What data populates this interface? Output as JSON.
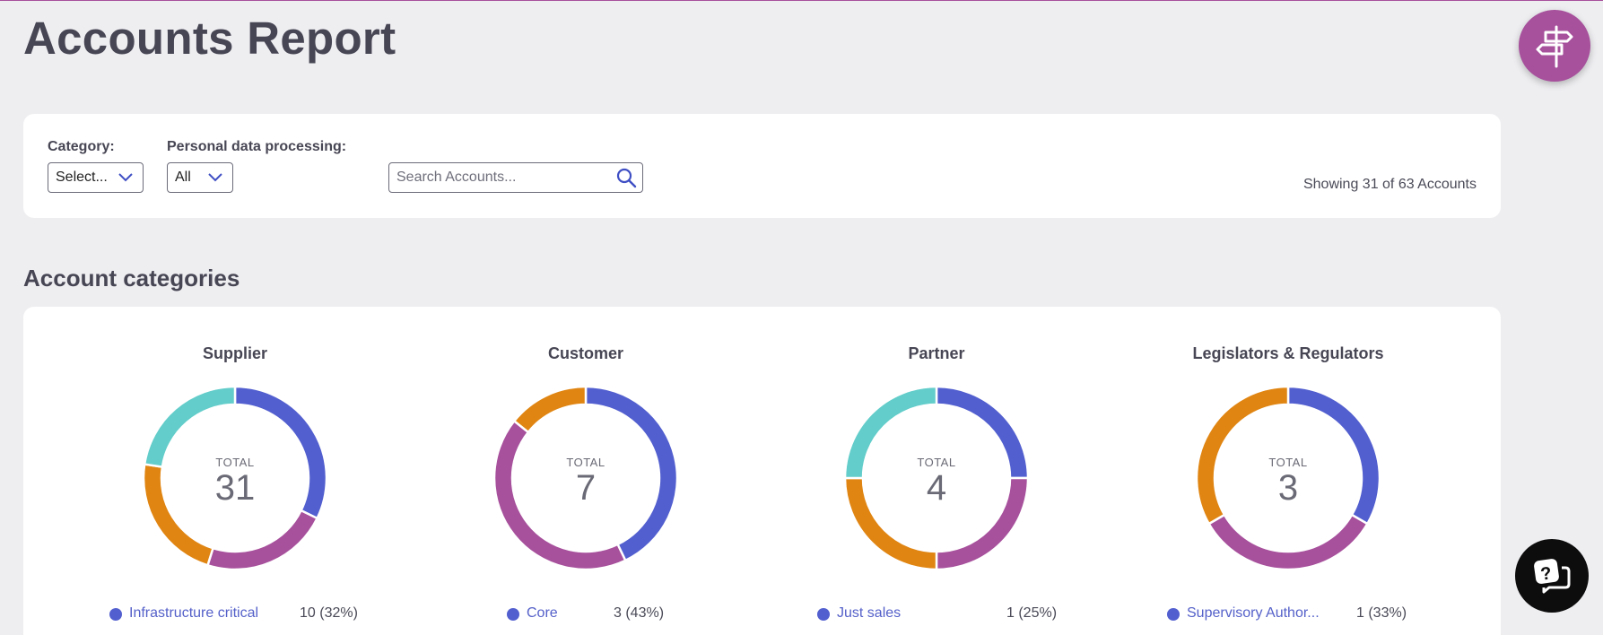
{
  "page": {
    "title": "Accounts Report"
  },
  "filters": {
    "category_label": "Category:",
    "category_value": "Select...",
    "personal_label": "Personal data processing:",
    "personal_value": "All",
    "search_placeholder": "Search Accounts...",
    "showing": "Showing 31 of 63 Accounts"
  },
  "sections": {
    "categories_title": "Account categories"
  },
  "colors": {
    "accent": "#a7509c",
    "blue": "#525fcf",
    "purple": "#a7509c",
    "orange": "#e08512",
    "teal": "#62cdca",
    "link": "#5561c9"
  },
  "icons": {
    "guide": "signpost-icon",
    "search": "search-icon",
    "chevron": "chevron-down-icon",
    "chat": "chat-help-icon"
  },
  "chart_data": [
    {
      "type": "pie",
      "title": "Supplier",
      "total_label": "TOTAL",
      "total": "31",
      "slices": [
        {
          "label": "Infrastructure critical",
          "value": 10,
          "display": "10 (32%)",
          "color": "#525fcf"
        },
        {
          "value": 7,
          "color": "#a7509c"
        },
        {
          "value": 7,
          "color": "#e08512"
        },
        {
          "value": 7,
          "color": "#62cdca"
        }
      ]
    },
    {
      "type": "pie",
      "title": "Customer",
      "total_label": "TOTAL",
      "total": "7",
      "slices": [
        {
          "label": "Core",
          "value": 3,
          "display": "3 (43%)",
          "color": "#525fcf"
        },
        {
          "value": 3,
          "color": "#a7509c"
        },
        {
          "value": 1,
          "color": "#e08512"
        }
      ]
    },
    {
      "type": "pie",
      "title": "Partner",
      "total_label": "TOTAL",
      "total": "4",
      "slices": [
        {
          "label": "Just sales",
          "value": 1,
          "display": "1 (25%)",
          "color": "#525fcf"
        },
        {
          "value": 1,
          "color": "#a7509c"
        },
        {
          "value": 1,
          "color": "#e08512"
        },
        {
          "value": 1,
          "color": "#62cdca"
        }
      ]
    },
    {
      "type": "pie",
      "title": "Legislators & Regulators",
      "total_label": "TOTAL",
      "total": "3",
      "slices": [
        {
          "label": "Supervisory Author...",
          "value": 1,
          "display": "1 (33%)",
          "color": "#525fcf"
        },
        {
          "value": 1,
          "color": "#a7509c"
        },
        {
          "value": 1,
          "color": "#e08512"
        }
      ]
    }
  ]
}
